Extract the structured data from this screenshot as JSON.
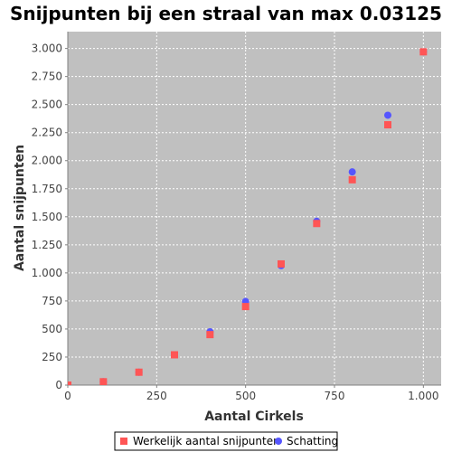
{
  "chart_data": {
    "type": "scatter",
    "title": "Snijpunten bij een straal van max 0.03125",
    "xlabel": "Aantal Cirkels",
    "ylabel": "Aantal snijpunten",
    "xlim": [
      0,
      1050
    ],
    "ylim": [
      0,
      3150
    ],
    "x_ticks": [
      0,
      250,
      500,
      750,
      1000
    ],
    "x_tick_labels": [
      "0",
      "250",
      "500",
      "750",
      "1.000"
    ],
    "y_ticks": [
      0,
      250,
      500,
      750,
      1000,
      1250,
      1500,
      1750,
      2000,
      2250,
      2500,
      2750,
      3000
    ],
    "y_tick_labels": [
      "0",
      "250",
      "500",
      "750",
      "1.000",
      "1.250",
      "1.500",
      "1.750",
      "2.000",
      "2.250",
      "2.500",
      "2.750",
      "3.000"
    ],
    "grid": true,
    "legend_position": "bottom",
    "series": [
      {
        "name": "Werkelijk aantal snijpunten",
        "marker": "square",
        "color": "#ff5555",
        "points": [
          [
            0,
            0
          ],
          [
            100,
            30
          ],
          [
            200,
            115
          ],
          [
            300,
            270
          ],
          [
            400,
            450
          ],
          [
            500,
            700
          ],
          [
            600,
            1080
          ],
          [
            700,
            1440
          ],
          [
            800,
            1830
          ],
          [
            900,
            2320
          ],
          [
            1000,
            2970
          ]
        ]
      },
      {
        "name": "Schatting",
        "marker": "circle",
        "color": "#5555ff",
        "points": [
          [
            0,
            0
          ],
          [
            100,
            30
          ],
          [
            200,
            115
          ],
          [
            300,
            270
          ],
          [
            400,
            475
          ],
          [
            500,
            745
          ],
          [
            600,
            1065
          ],
          [
            700,
            1460
          ],
          [
            800,
            1900
          ],
          [
            900,
            2405
          ],
          [
            1000,
            2970
          ]
        ]
      }
    ],
    "colors": {
      "plot_background": "#c0c0c0",
      "grid": "#ffffff",
      "axis": "#808080"
    }
  }
}
